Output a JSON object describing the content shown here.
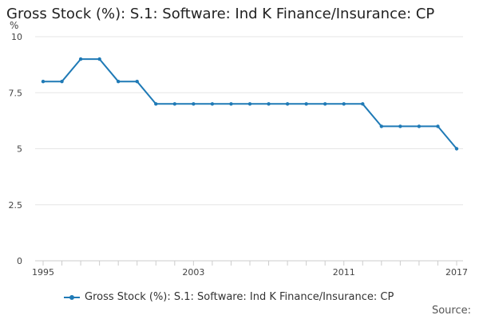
{
  "chart_data": {
    "type": "line",
    "title": "Gross Stock (%): S.1: Software: Ind K Finance/Insurance: CP",
    "ylabel": "%",
    "ylim": [
      0,
      10
    ],
    "yticks": [
      "0",
      "2.5",
      "5",
      "7.5",
      "10"
    ],
    "ytick_values": [
      0,
      2.5,
      5,
      7.5,
      10
    ],
    "xlim": [
      1995,
      2017
    ],
    "xtick_labels": [
      "1995",
      "2003",
      "2011",
      "2017"
    ],
    "xtick_values": [
      1995,
      2003,
      2011,
      2017
    ],
    "grid": true,
    "legend_position": "bottom",
    "series": [
      {
        "name": "Gross Stock (%): S.1: Software: Ind K Finance/Insurance: CP",
        "color": "#1f7ab6",
        "x": [
          1995,
          1996,
          1997,
          1998,
          1999,
          2000,
          2001,
          2002,
          2003,
          2004,
          2005,
          2006,
          2007,
          2008,
          2009,
          2010,
          2011,
          2012,
          2013,
          2014,
          2015,
          2016,
          2017
        ],
        "values": [
          8,
          8,
          9,
          9,
          8,
          8,
          7,
          7,
          7,
          7,
          7,
          7,
          7,
          7,
          7,
          7,
          7,
          7,
          6,
          6,
          6,
          6,
          5
        ]
      }
    ]
  },
  "source_label": "Source:"
}
